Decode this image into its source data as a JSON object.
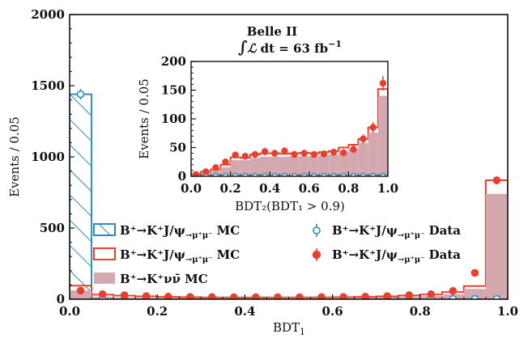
{
  "chart_data": [
    {
      "type": "histogram",
      "xlabel": "BDT",
      "xlabel_sub": "1",
      "ylabel": "Events / 0.05",
      "xlim": [
        0.0,
        1.0
      ],
      "ylim": [
        0,
        2000
      ],
      "xticks": [
        "0.0",
        "0.2",
        "0.4",
        "0.6",
        "0.8",
        "1.0"
      ],
      "yticks": [
        "0",
        "500",
        "1000",
        "1500",
        "2000"
      ],
      "bin_edges": [
        0.0,
        0.05,
        0.1,
        0.15,
        0.2,
        0.25,
        0.3,
        0.35,
        0.4,
        0.45,
        0.5,
        0.55,
        0.6,
        0.65,
        0.7,
        0.75,
        0.8,
        0.85,
        0.9,
        0.95,
        1.0
      ],
      "series": [
        {
          "name": "B⁺→K⁺J/ψ→μ⁺μ⁻ MC (BDT₁-inverted)",
          "style": "hatched-step",
          "color": "#2b8cbe",
          "values": [
            1440,
            0,
            0,
            0,
            0,
            0,
            0,
            0,
            0,
            0,
            0,
            0,
            0,
            0,
            0,
            0,
            0,
            0,
            0,
            0
          ]
        },
        {
          "name": "B⁺→K⁺J/ψ→μ⁺μ⁻ MC",
          "style": "step",
          "color": "#e8402f",
          "values": [
            95,
            32,
            25,
            20,
            16,
            14,
            12,
            12,
            12,
            12,
            12,
            13,
            14,
            16,
            20,
            26,
            33,
            50,
            92,
            835
          ]
        },
        {
          "name": "B⁺→K⁺νν̄ MC",
          "style": "filled",
          "color": "#d3a8ae",
          "values": [
            62,
            18,
            12,
            10,
            9,
            8,
            8,
            8,
            8,
            9,
            9,
            10,
            11,
            12,
            14,
            18,
            22,
            34,
            72,
            740
          ]
        },
        {
          "name": "B⁺→K⁺J/ψ→μ⁺μ⁻ Data (open)",
          "style": "open-markers",
          "color": "#2b8cbe",
          "values": [
            1440,
            2,
            2,
            2,
            2,
            2,
            2,
            2,
            2,
            2,
            2,
            2,
            2,
            2,
            2,
            2,
            2,
            2,
            2,
            2
          ]
        },
        {
          "name": "B⁺→K⁺J/ψ→μ⁺μ⁻ Data",
          "style": "filled-markers",
          "color": "#e8402f",
          "values": [
            60,
            35,
            28,
            22,
            18,
            16,
            15,
            14,
            14,
            14,
            14,
            15,
            16,
            18,
            22,
            28,
            35,
            58,
            185,
            835
          ]
        }
      ]
    },
    {
      "type": "histogram",
      "xlabel": "BDT₂(BDT₁ > 0.9)",
      "ylabel": "Events / 0.05",
      "xlim": [
        0.0,
        1.0
      ],
      "ylim": [
        0,
        200
      ],
      "xticks": [
        "0.0",
        "0.2",
        "0.4",
        "0.6",
        "0.8",
        "1.0"
      ],
      "yticks": [
        "0",
        "50",
        "100",
        "150",
        "200"
      ],
      "bin_edges": [
        0.0,
        0.05,
        0.1,
        0.15,
        0.2,
        0.25,
        0.3,
        0.35,
        0.4,
        0.45,
        0.5,
        0.55,
        0.6,
        0.65,
        0.7,
        0.75,
        0.8,
        0.85,
        0.9,
        0.95,
        1.0
      ],
      "series": [
        {
          "name": "B⁺→K⁺J/ψ→μ⁺μ⁻ MC",
          "style": "step",
          "color": "#e8402f",
          "values": [
            4,
            8,
            12,
            20,
            33,
            32,
            38,
            40,
            40,
            39,
            40,
            41,
            40,
            42,
            44,
            50,
            55,
            65,
            85,
            152
          ]
        },
        {
          "name": "B⁺→K⁺νν̄ MC",
          "style": "filled",
          "color": "#d3a8ae",
          "values": [
            2,
            6,
            10,
            16,
            28,
            28,
            32,
            34,
            34,
            34,
            35,
            35,
            35,
            37,
            38,
            43,
            48,
            58,
            76,
            140
          ]
        },
        {
          "name": "B⁺→K⁺J/ψ→μ⁺μ⁻ Data (open)",
          "style": "open-markers",
          "color": "#2b8cbe",
          "values": [
            0,
            0,
            0,
            0,
            0,
            0,
            0,
            0,
            0,
            0,
            0,
            0,
            0,
            0,
            0,
            0,
            0,
            0,
            0,
            0
          ]
        },
        {
          "name": "B⁺→K⁺J/ψ→μ⁺μ⁻ Data",
          "style": "filled-markers",
          "color": "#e8402f",
          "values": [
            3,
            8,
            15,
            25,
            37,
            35,
            38,
            43,
            40,
            44,
            38,
            40,
            38,
            39,
            42,
            41,
            47,
            65,
            85,
            162
          ]
        }
      ]
    }
  ],
  "annotation": {
    "experiment": "Belle II",
    "lumi_prefix": "∫",
    "lumi_L": "ℒ",
    "lumi_rest": " dt = 63 fb",
    "lumi_exp": "−1"
  },
  "legend": [
    {
      "text": "B⁺→K⁺J/ψ",
      "sub": "→μ⁺μ⁻",
      "suffix": " MC",
      "style": "hatched",
      "color": "#2b8cbe"
    },
    {
      "text": "B⁺→K⁺J/ψ",
      "sub": "→μ⁺μ⁻",
      "suffix": " MC",
      "style": "step",
      "color": "#e8402f"
    },
    {
      "text": "B⁺→K⁺νν̄ MC",
      "sub": "",
      "suffix": "",
      "style": "filled",
      "color": "#d3a8ae"
    },
    {
      "text": "B⁺→K⁺J/ψ",
      "sub": "→μ⁺μ⁻",
      "suffix": " Data",
      "style": "open-marker",
      "color": "#2b8cbe"
    },
    {
      "text": "B⁺→K⁺J/ψ",
      "sub": "→μ⁺μ⁻",
      "suffix": " Data",
      "style": "filled-marker",
      "color": "#e8402f"
    }
  ]
}
